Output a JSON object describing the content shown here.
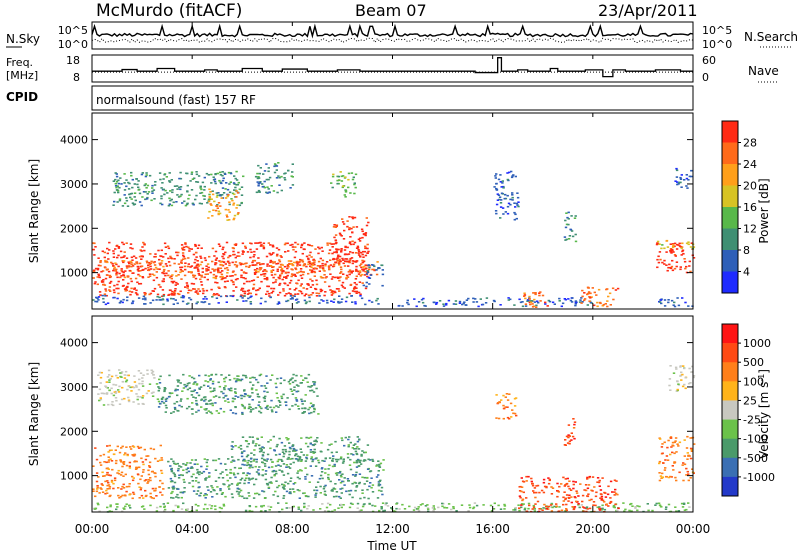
{
  "header": {
    "station": "McMurdo (fitACF)",
    "beam": "Beam 07",
    "date": "23/Apr/2011",
    "cpid_label": "CPID",
    "cpid_text": "normalsound (fast) 157 RF"
  },
  "chart_data": [
    {
      "id": "noise",
      "type": "line",
      "left_label": "N.Sky",
      "right_label": "N.Search",
      "left_ticks": [
        "10^5",
        "10^0"
      ],
      "right_ticks": [
        "10^5",
        "10^0"
      ],
      "series": [
        {
          "style": "solid"
        },
        {
          "style": "dotted"
        }
      ],
      "x": [
        0,
        1,
        2,
        3,
        4,
        5,
        6,
        7,
        8,
        9,
        10,
        11,
        12,
        13,
        14,
        15,
        16,
        17,
        18,
        19,
        20,
        21,
        22,
        23,
        24
      ],
      "ylim": [
        0,
        5
      ]
    },
    {
      "id": "freq_nave",
      "type": "line",
      "left_label_lines": [
        "Freq.",
        "[MHz]"
      ],
      "right_label": "Nave",
      "left_ticks": [
        "18",
        "8"
      ],
      "right_ticks": [
        "60",
        "0"
      ],
      "freq_mhz": {
        "x": [
          0,
          1.2,
          1.8,
          2.6,
          3.3,
          4.5,
          5.0,
          6.0,
          6.8,
          7.6,
          8.6,
          9.8,
          10.7,
          11.5,
          12.4,
          13.2,
          14.5,
          15.3,
          16.2,
          16.35,
          17.0,
          17.4,
          18.3,
          18.6,
          19.7,
          20.4,
          20.8,
          21.3,
          22.5,
          23.5,
          24
        ],
        "values": [
          12,
          12.6,
          12,
          13,
          12,
          12.5,
          12,
          13,
          12,
          12.8,
          12,
          12.5,
          12,
          12,
          12,
          12,
          12,
          11.5,
          17,
          12,
          12.5,
          12,
          13,
          12,
          12.5,
          10,
          12.5,
          12,
          12.5,
          12,
          12
        ]
      },
      "nave": {
        "x": [
          0,
          1,
          2,
          3,
          4,
          5,
          6,
          7,
          8,
          9,
          10,
          11,
          12,
          13,
          14,
          15,
          16,
          17,
          18,
          19,
          20,
          21,
          22,
          23,
          24
        ],
        "values": [
          22,
          22,
          22,
          22,
          22,
          22,
          22,
          22,
          22,
          22,
          22,
          22,
          22,
          22,
          22,
          22,
          22,
          22,
          22,
          22,
          22,
          22,
          22,
          22,
          22
        ]
      },
      "ylim_left": [
        8,
        18
      ],
      "ylim_right": [
        0,
        60
      ]
    },
    {
      "id": "power",
      "type": "heatmap",
      "ylabel": "Slant Range [km]",
      "yticks": [
        1000,
        2000,
        3000,
        4000
      ],
      "ylim": [
        180,
        4600
      ],
      "xlim": [
        0,
        24
      ],
      "colorbar": {
        "label": "Power [dB]",
        "ticks": [
          "4",
          "8",
          "12",
          "16",
          "20",
          "24",
          "28"
        ],
        "colors": [
          "#1f2bff",
          "#2e5fb8",
          "#3f8f73",
          "#58b84a",
          "#d7c324",
          "#ff9f1a",
          "#ff6a1a",
          "#ff2a14"
        ]
      },
      "regions": [
        {
          "x0": 0,
          "x1": 11.0,
          "r0": 480,
          "r1": 1700,
          "cat": 7
        },
        {
          "x0": 0,
          "x1": 11.4,
          "r0": 900,
          "r1": 1300,
          "cat": 6
        },
        {
          "x0": 0,
          "x1": 11.4,
          "r0": 300,
          "r1": 500,
          "cat": 1
        },
        {
          "x0": 0.8,
          "x1": 6.0,
          "r0": 2500,
          "r1": 3300,
          "cat": 2
        },
        {
          "x0": 4.6,
          "x1": 5.8,
          "r0": 2200,
          "r1": 2900,
          "cat": 5
        },
        {
          "x0": 6.5,
          "x1": 8.0,
          "r0": 2800,
          "r1": 3500,
          "cat": 2
        },
        {
          "x0": 9.5,
          "x1": 10.5,
          "r0": 2700,
          "r1": 3300,
          "cat": 3
        },
        {
          "x0": 9.6,
          "x1": 11.0,
          "r0": 1200,
          "r1": 2300,
          "cat": 7
        },
        {
          "x0": 10.8,
          "x1": 11.6,
          "r0": 700,
          "r1": 1200,
          "cat": 1
        },
        {
          "x0": 12.0,
          "x1": 20.0,
          "r0": 250,
          "r1": 450,
          "cat": 1
        },
        {
          "x0": 16.0,
          "x1": 17.0,
          "r0": 2200,
          "r1": 3300,
          "cat": 1
        },
        {
          "x0": 17.2,
          "x1": 18.2,
          "r0": 200,
          "r1": 600,
          "cat": 6
        },
        {
          "x0": 18.8,
          "x1": 19.3,
          "r0": 1700,
          "r1": 2400,
          "cat": 2
        },
        {
          "x0": 19.5,
          "x1": 21.0,
          "r0": 250,
          "r1": 700,
          "cat": 6
        },
        {
          "x0": 22.5,
          "x1": 24.0,
          "r0": 1000,
          "r1": 1700,
          "cat": 7
        },
        {
          "x0": 22.5,
          "x1": 24.0,
          "r0": 1550,
          "r1": 1750,
          "cat": 4
        },
        {
          "x0": 22.5,
          "x1": 24.0,
          "r0": 250,
          "r1": 450,
          "cat": 1
        },
        {
          "x0": 23.2,
          "x1": 23.9,
          "r0": 2900,
          "r1": 3400,
          "cat": 1
        }
      ]
    },
    {
      "id": "velocity",
      "type": "heatmap",
      "ylabel": "Slant Range [km]",
      "yticks": [
        1000,
        2000,
        3000,
        4000
      ],
      "ylim": [
        180,
        4600
      ],
      "xlim": [
        0,
        24
      ],
      "xlabel": "Time UT",
      "xticks": [
        "00:00",
        "04:00",
        "08:00",
        "12:00",
        "16:00",
        "20:00",
        "00:00"
      ],
      "colorbar": {
        "label": "Velocity [m s^-1]",
        "ticks": [
          "1000",
          "500",
          "100",
          "25",
          "-25",
          "-100",
          "-500",
          "-1000"
        ],
        "colors": [
          "#2339c9",
          "#3a6fb3",
          "#4a9a6a",
          "#6bc24a",
          "#c8c8c0",
          "#ffb31a",
          "#ff7f1a",
          "#ff4a14",
          "#ff1414"
        ]
      },
      "regions": [
        {
          "x0": 0,
          "x1": 2.8,
          "r0": 500,
          "r1": 1700,
          "cat": 6
        },
        {
          "x0": 3.0,
          "x1": 11.6,
          "r0": 500,
          "r1": 1400,
          "cat": 2
        },
        {
          "x0": 5.5,
          "x1": 11.0,
          "r0": 1300,
          "r1": 1900,
          "cat": 2
        },
        {
          "x0": 0.2,
          "x1": 2.6,
          "r0": 2600,
          "r1": 3400,
          "cat": 4
        },
        {
          "x0": 2.6,
          "x1": 9.0,
          "r0": 2400,
          "r1": 3300,
          "cat": 2
        },
        {
          "x0": 0,
          "x1": 24,
          "r0": 200,
          "r1": 400,
          "cat": 3
        },
        {
          "x0": 16.1,
          "x1": 16.9,
          "r0": 2300,
          "r1": 2900,
          "cat": 6
        },
        {
          "x0": 17.0,
          "x1": 21.0,
          "r0": 200,
          "r1": 1000,
          "cat": 7
        },
        {
          "x0": 18.8,
          "x1": 19.3,
          "r0": 1700,
          "r1": 2300,
          "cat": 7
        },
        {
          "x0": 22.6,
          "x1": 24.0,
          "r0": 900,
          "r1": 1900,
          "cat": 6
        },
        {
          "x0": 23.0,
          "x1": 24.0,
          "r0": 2900,
          "r1": 3500,
          "cat": 4
        }
      ]
    }
  ]
}
